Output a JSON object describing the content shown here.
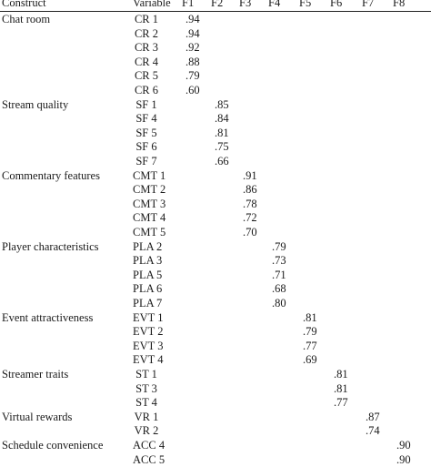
{
  "table": {
    "headers": [
      "Construct",
      "Variable",
      "F1",
      "F2",
      "F3",
      "F4",
      "F5",
      "F6",
      "F7",
      "F8"
    ],
    "groups": [
      {
        "construct": "Chat room",
        "factor": 1,
        "rows": [
          {
            "variable": "CR 1",
            "loading": ".94"
          },
          {
            "variable": "CR 2",
            "loading": ".94"
          },
          {
            "variable": "CR 3",
            "loading": ".92"
          },
          {
            "variable": "CR 4",
            "loading": ".88"
          },
          {
            "variable": "CR 5",
            "loading": ".79"
          },
          {
            "variable": "CR 6",
            "loading": ".60"
          }
        ]
      },
      {
        "construct": "Stream quality",
        "factor": 2,
        "rows": [
          {
            "variable": "SF 1",
            "loading": ".85"
          },
          {
            "variable": "SF 4",
            "loading": ".84"
          },
          {
            "variable": "SF 5",
            "loading": ".81"
          },
          {
            "variable": "SF 6",
            "loading": ".75"
          },
          {
            "variable": "SF 7",
            "loading": ".66"
          }
        ]
      },
      {
        "construct": "Commentary features",
        "factor": 3,
        "rows": [
          {
            "variable": "CMT 1",
            "loading": ".91"
          },
          {
            "variable": "CMT 2",
            "loading": ".86"
          },
          {
            "variable": "CMT 3",
            "loading": ".78"
          },
          {
            "variable": "CMT 4",
            "loading": ".72"
          },
          {
            "variable": "CMT 5",
            "loading": ".70"
          }
        ]
      },
      {
        "construct": "Player characteristics",
        "factor": 4,
        "rows": [
          {
            "variable": "PLA 2",
            "loading": ".79"
          },
          {
            "variable": "PLA 3",
            "loading": ".73"
          },
          {
            "variable": "PLA 5",
            "loading": ".71"
          },
          {
            "variable": "PLA 6",
            "loading": ".68"
          },
          {
            "variable": "PLA 7",
            "loading": ".80"
          }
        ]
      },
      {
        "construct": "Event attractiveness",
        "factor": 5,
        "rows": [
          {
            "variable": "EVT 1",
            "loading": ".81"
          },
          {
            "variable": "EVT 2",
            "loading": ".79"
          },
          {
            "variable": "EVT 3",
            "loading": ".77"
          },
          {
            "variable": "EVT 4",
            "loading": ".69"
          }
        ]
      },
      {
        "construct": "Streamer traits",
        "factor": 6,
        "rows": [
          {
            "variable": "ST 1",
            "loading": ".81"
          },
          {
            "variable": "ST 3",
            "loading": ".81"
          },
          {
            "variable": "ST 4",
            "loading": ".77"
          }
        ]
      },
      {
        "construct": "Virtual rewards",
        "factor": 7,
        "rows": [
          {
            "variable": "VR 1",
            "loading": ".87"
          },
          {
            "variable": "VR 2",
            "loading": ".74"
          }
        ]
      },
      {
        "construct": "Schedule convenience",
        "factor": 8,
        "rows": [
          {
            "variable": "ACC 4",
            "loading": ".90"
          },
          {
            "variable": "ACC 5",
            "loading": ".90"
          }
        ]
      }
    ]
  }
}
